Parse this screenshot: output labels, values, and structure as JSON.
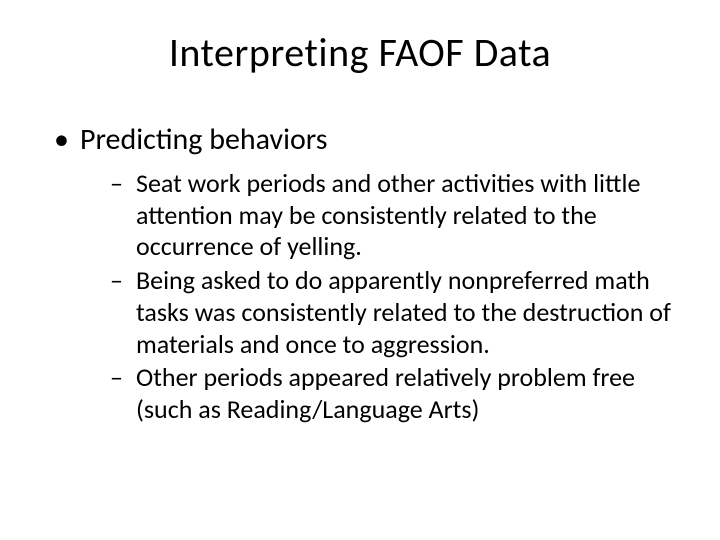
{
  "slide": {
    "title": "Interpreting FAOF Data",
    "bullets": [
      {
        "text": "Predicting behaviors",
        "children": [
          "Seat work periods and other activities with little attention may be consistently related to the occurrence of yelling.",
          "Being asked to do apparently nonpreferred math tasks was consistently related to the destruction of materials and once to aggression.",
          "Other periods appeared relatively problem free (such as Reading/Language Arts)"
        ]
      }
    ]
  },
  "styling": {
    "background_color": "#ffffff",
    "text_color": "#000000",
    "font_family": "Calibri",
    "title_fontsize": 40,
    "level1_fontsize": 30,
    "level2_fontsize": 26,
    "slide_width": 720,
    "slide_height": 540,
    "level1_bullet": "•",
    "level2_bullet": "–"
  }
}
